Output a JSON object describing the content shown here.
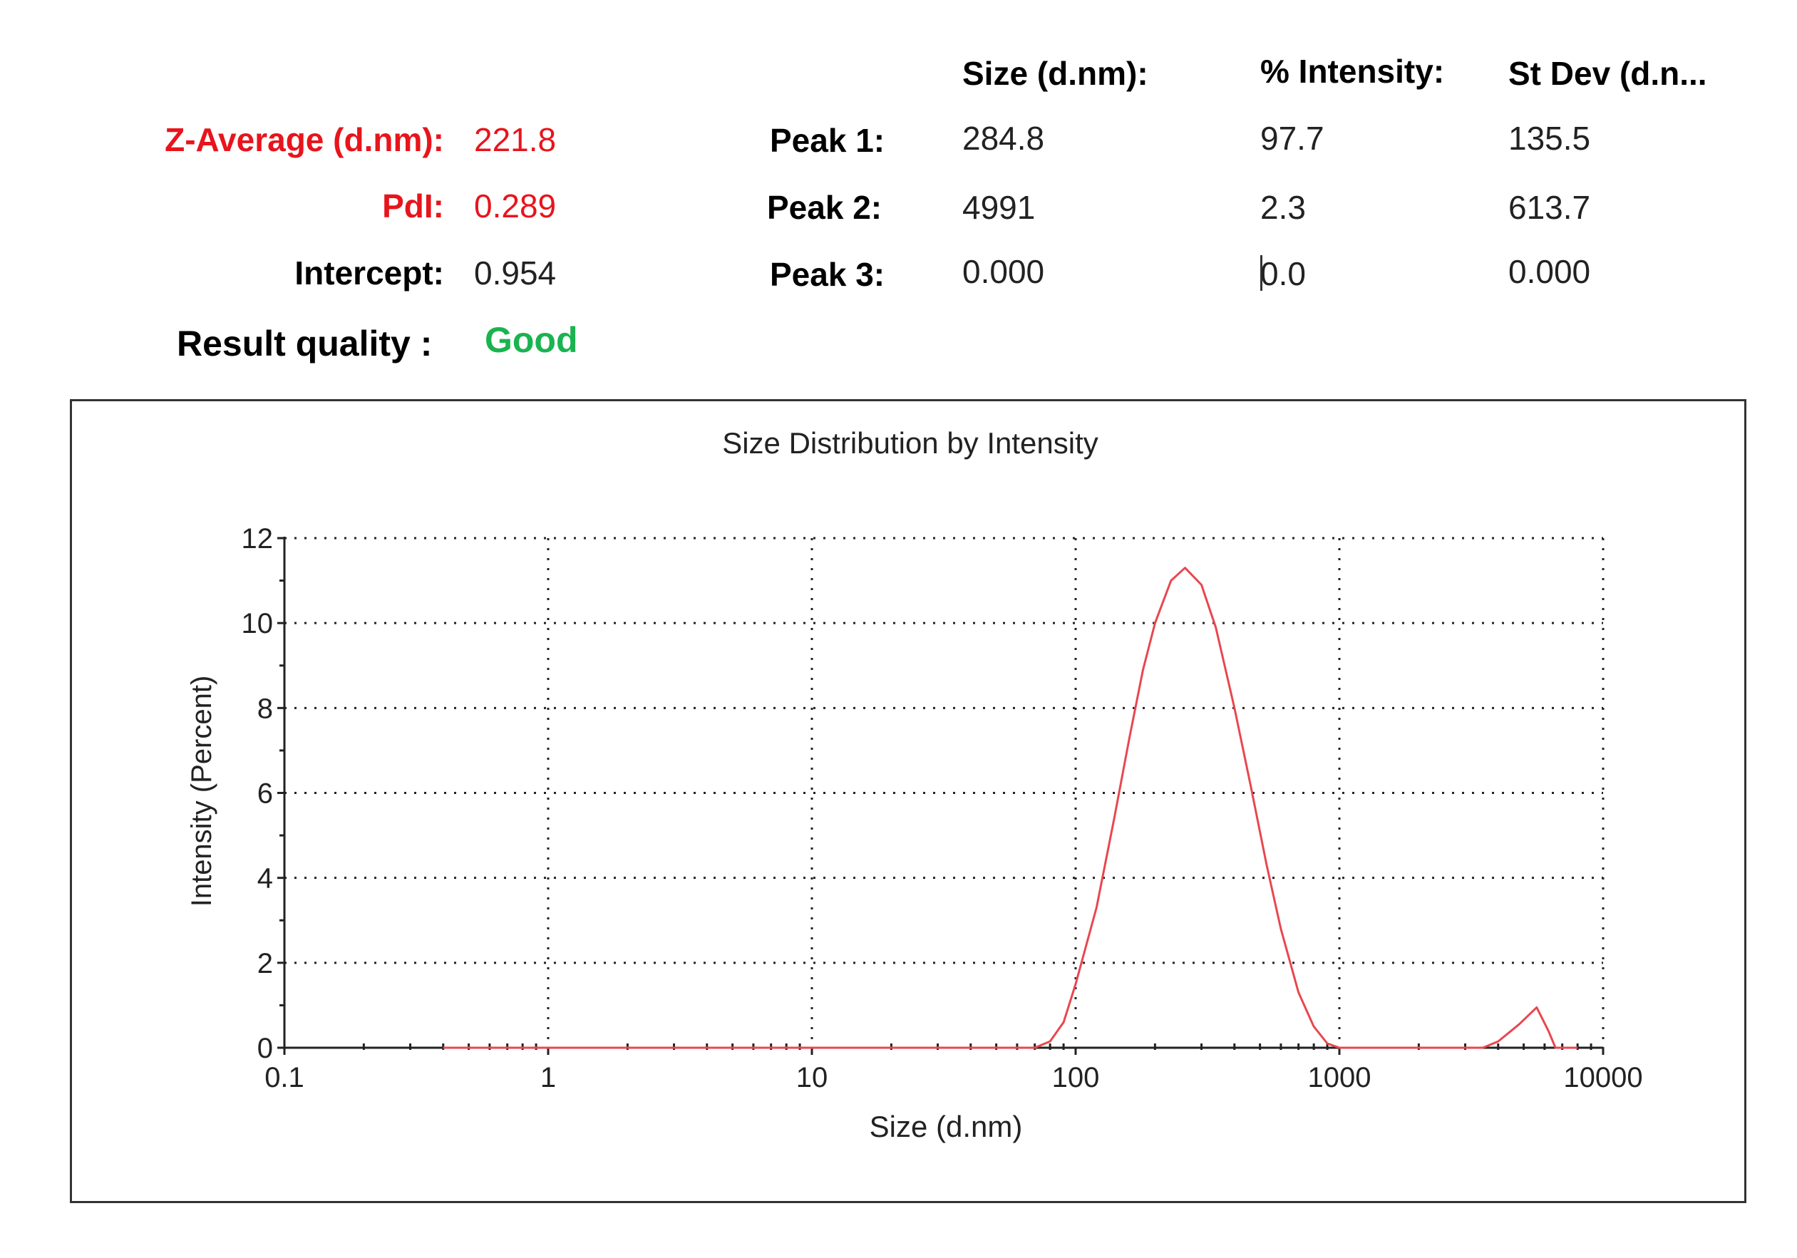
{
  "summary": {
    "z_average": {
      "label": "Z-Average (d.nm):",
      "value": "221.8"
    },
    "pdi": {
      "label": "PdI:",
      "value": "0.289"
    },
    "intercept": {
      "label": "Intercept:",
      "value": "0.954"
    },
    "result_quality": {
      "label": "Result quality :",
      "value": "Good"
    }
  },
  "peaks_table": {
    "headers": [
      "Size (d.nm):",
      "% Intensity:",
      "St Dev (d.n..."
    ],
    "rows": [
      {
        "label": "Peak 1:",
        "size": "284.8",
        "intensity": "97.7",
        "stdev": "135.5"
      },
      {
        "label": "Peak 2:",
        "size": "4991",
        "intensity": "2.3",
        "stdev": "613.7"
      },
      {
        "label": "Peak 3:",
        "size": "0.000",
        "intensity": "0.0",
        "stdev": "0.000"
      }
    ]
  },
  "colors": {
    "accent_red": "#e8141c",
    "good_green": "#1ab350",
    "curve": "#e8474f"
  },
  "chart_data": {
    "type": "line",
    "title": "Size Distribution by Intensity",
    "xlabel": "Size (d.nm)",
    "ylabel": "Intensity (Percent)",
    "x_scale": "log",
    "xlim": [
      0.1,
      10000
    ],
    "ylim": [
      0,
      12
    ],
    "x_ticks": [
      "0.1",
      "1",
      "10",
      "100",
      "1000",
      "10000"
    ],
    "y_ticks": [
      "0",
      "2",
      "4",
      "6",
      "8",
      "10",
      "12"
    ],
    "grid": true,
    "series": [
      {
        "x": [
          0.4,
          1,
          10,
          50,
          70,
          80,
          90,
          100,
          120,
          140,
          160,
          180,
          200,
          230,
          260,
          300,
          340,
          400,
          460,
          530,
          600,
          700,
          800,
          900,
          1000,
          2000,
          3500,
          4000,
          4800,
          5600,
          6200,
          6600,
          8000
        ],
        "y": [
          0,
          0,
          0,
          0,
          0,
          0.15,
          0.6,
          1.5,
          3.3,
          5.4,
          7.3,
          8.9,
          10.0,
          11.0,
          11.3,
          10.9,
          9.9,
          8.0,
          6.2,
          4.3,
          2.8,
          1.3,
          0.5,
          0.1,
          0,
          0,
          0,
          0.15,
          0.55,
          0.95,
          0.4,
          0,
          0
        ]
      }
    ]
  }
}
